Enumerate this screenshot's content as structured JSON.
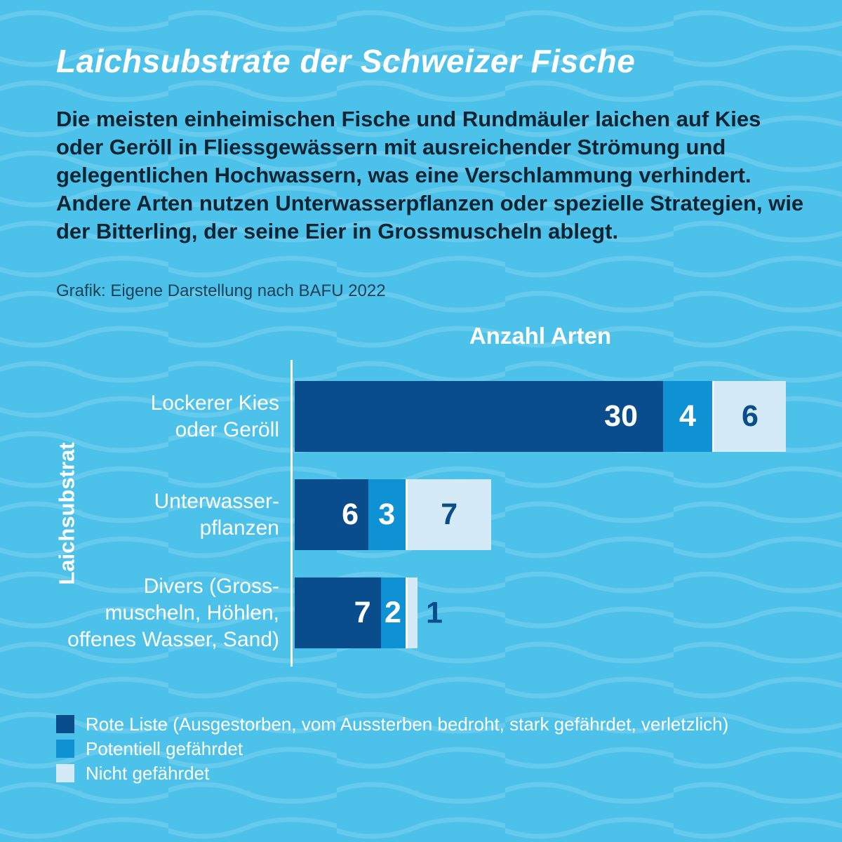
{
  "title": "Laichsubstrate der Schweizer Fische",
  "intro": "Die meisten einheimischen Fische und Rundmäuler laichen auf Kies oder Geröll in Fliessgewässern mit ausreichender Strömung und gelegentlichen Hochwassern, was eine Verschlammung verhindert. Andere Arten nutzen Unterwasserpflanzen oder spezielle Strategien, wie der Bitterling, der seine Eier in Gross­muscheln ablegt.",
  "source": "Grafik: Eigene Darstellung nach BAFU 2022",
  "colors": {
    "background": "#4cc1e9",
    "wave_line": "#6fd0f0",
    "title_text": "#ffffff",
    "body_text": "#0d2433",
    "source_text": "#1d4156",
    "axis_text": "#ffffff",
    "axis_line": "#ffffff",
    "value_on_dark": "#ffffff",
    "value_on_light": "#0b4d8a"
  },
  "chart_data": {
    "type": "bar",
    "orientation": "horizontal",
    "stacked": true,
    "title": "",
    "x_axis_title": "Anzahl Arten",
    "y_axis_title": "Laichsubstrat",
    "xlim": [
      0,
      40
    ],
    "grid": false,
    "data_labels": true,
    "legend_position": "bottom",
    "categories": [
      "Lockerer Kies\noder Geröll",
      "Unterwasser-\npflanzen",
      "Divers (Gross-\nmuscheln, Höhlen,\noffenes Wasser, Sand)"
    ],
    "series": [
      {
        "name": "Rote Liste (Ausgestorben, vom Aussterben bedroht, stark gefährdet, verletzlich)",
        "color": "#0a4d8c",
        "values": [
          30,
          6,
          7
        ]
      },
      {
        "name": "Potentiell gefährdet",
        "color": "#0f92d4",
        "values": [
          4,
          3,
          2
        ]
      },
      {
        "name": "Nicht gefährdet",
        "color": "#d5eaf7",
        "values": [
          6,
          7,
          1
        ]
      }
    ]
  }
}
